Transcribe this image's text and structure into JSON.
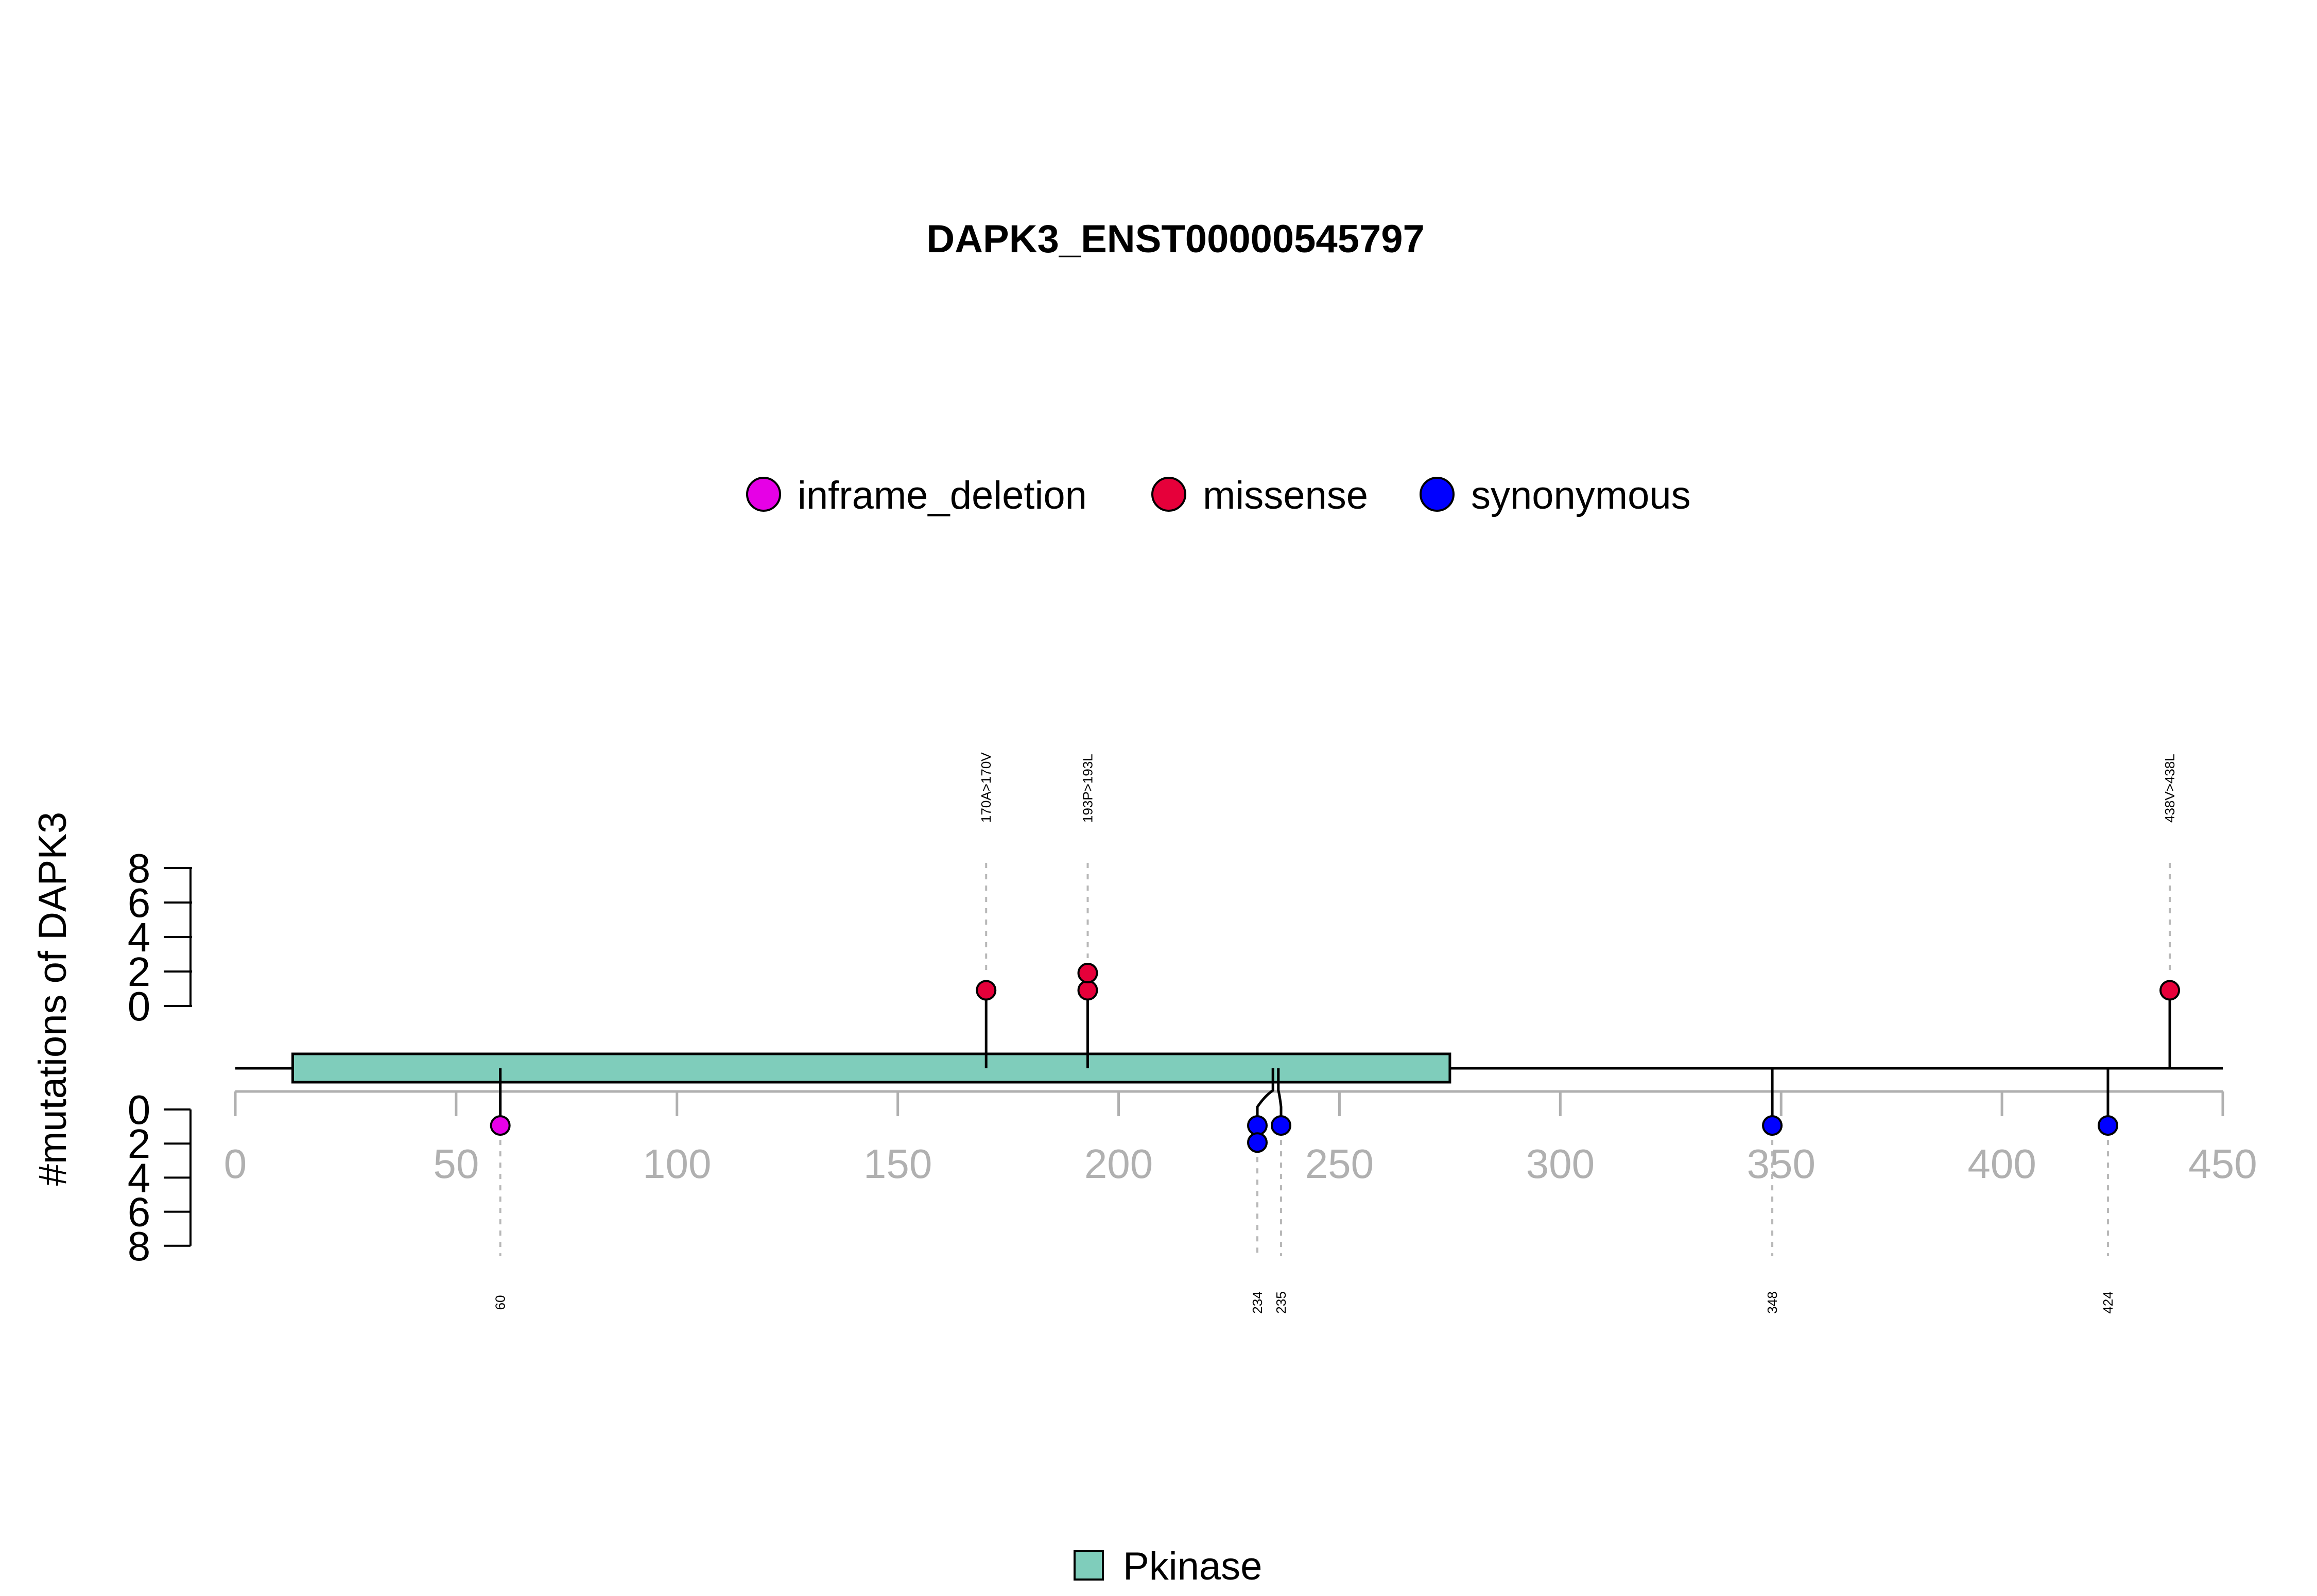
{
  "chart_data": {
    "type": "lollipop",
    "title": "DAPK3_ENST00000545797",
    "ylabel": "#mutations of DAPK3",
    "xlim": [
      0,
      450
    ],
    "x_ticks": [
      0,
      50,
      100,
      150,
      200,
      250,
      300,
      350,
      400,
      450
    ],
    "y_ticks": [
      0,
      2,
      4,
      6,
      8
    ],
    "protein_length": 450,
    "legend": {
      "position": "top-center",
      "entries": [
        {
          "name": "inframe_deletion",
          "color": "#E600E6"
        },
        {
          "name": "missense",
          "color": "#E6003A"
        },
        {
          "name": "synonymous",
          "color": "#0000FF"
        }
      ]
    },
    "domains": [
      {
        "name": "Pkinase",
        "start": 13,
        "end": 275,
        "color": "#7FCDBB"
      }
    ],
    "top_mutations": [
      {
        "position": 170,
        "count": 1,
        "type": "missense",
        "label": "170A>170V"
      },
      {
        "position": 193,
        "count": 2,
        "type": "missense",
        "label": "193P>193L"
      },
      {
        "position": 438,
        "count": 1,
        "type": "missense",
        "label": "438V>438L"
      }
    ],
    "bottom_mutations": [
      {
        "position": 60,
        "count": 1,
        "type": "inframe_deletion",
        "label": "60"
      },
      {
        "position": 234,
        "count": 2,
        "type": "synonymous",
        "label": "234"
      },
      {
        "position": 235,
        "count": 1,
        "type": "synonymous",
        "label": "235"
      },
      {
        "position": 348,
        "count": 1,
        "type": "synonymous",
        "label": "348"
      },
      {
        "position": 424,
        "count": 1,
        "type": "synonymous",
        "label": "424"
      }
    ]
  }
}
